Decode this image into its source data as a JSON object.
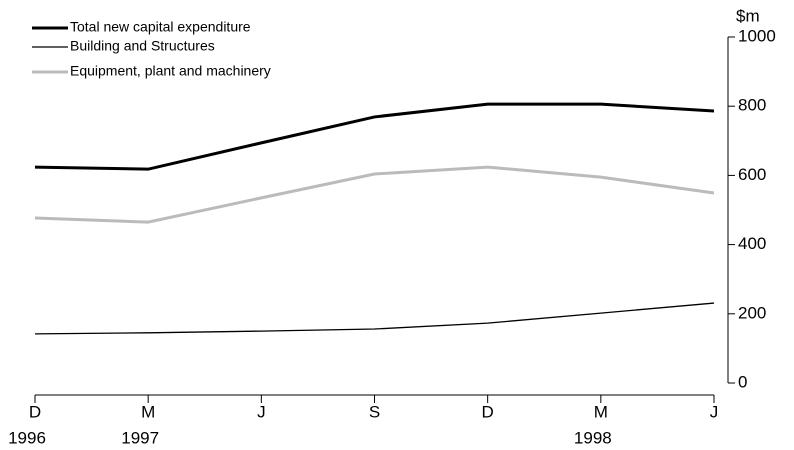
{
  "chart_data": {
    "type": "line",
    "y_unit": "$m",
    "categories": [
      "D",
      "M",
      "J",
      "S",
      "D",
      "M",
      "J"
    ],
    "category_years": [
      "1996",
      "1997",
      null,
      null,
      null,
      "1998",
      null
    ],
    "series": [
      {
        "name": "Total new capital expenditure",
        "color": "#000000",
        "width": 3,
        "values": [
          624,
          618,
          694,
          769,
          806,
          806,
          786
        ]
      },
      {
        "name": "Building and Structures",
        "color": "#000000",
        "width": 1.3,
        "values": [
          142,
          145,
          150,
          156,
          173,
          202,
          231
        ]
      },
      {
        "name": "Equipment, plant and machinery",
        "color": "#bbbbbb",
        "width": 3,
        "values": [
          477,
          465,
          535,
          604,
          624,
          595,
          549
        ]
      }
    ],
    "ylim": [
      0,
      1000
    ],
    "yticks": [
      0,
      200,
      400,
      600,
      800,
      1000
    ],
    "grid": false
  }
}
